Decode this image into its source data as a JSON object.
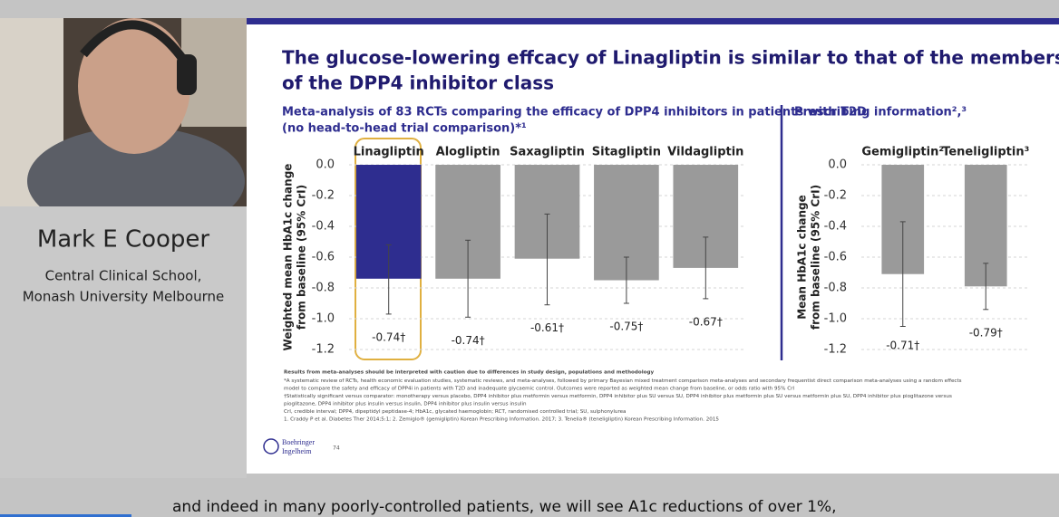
{
  "speaker": {
    "name": "Mark E Cooper",
    "affiliation": [
      "Central Clinical School,",
      "Monash University Melbourne"
    ]
  },
  "slide": {
    "title": [
      "The glucose-lowering effcacy of Linagliptin is similar to that of the members",
      "of the DPP4 inhibitor class"
    ],
    "subtitle_left": [
      "Meta-analysis of 83 RCTs comparing the efficacy of DPP4 inhibitors in patients with T2D",
      "(no head-to-head trial comparison)*¹"
    ],
    "subtitle_right": "Prescribing information²,³",
    "footnotes": [
      "Results from meta-analyses should be interpreted with caution due to differences in study design, populations and methodology",
      "*A systematic review of RCTs, health economic evaluation studies, systematic reviews, and meta-analyses, followed by primary Bayesian mixed treatment comparison meta-analyses and secondary frequentist direct comparison meta-analyses using a random effects",
      "model to compare the safety and efficacy of DPP4i in patients with T2D and inadequate glycaemic control. Outcomes were reported as weighted mean change from baseline, or odds ratio with 95% CrI",
      "†Statistically significant versus comparator: monotherapy versus placebo, DPP4 inhibitor plus metformin versus metformin, DPP4 inhibitor plus SU versus SU, DPP4 inhibitor plus metformin plus SU versus metformin plus SU, DPP4 inhibitor plus pioglitazone versus",
      "pioglitazone, DPP4 inhibitor plus insulin versus insulin, DPP4 inhibitor plus insulin versus insulin",
      "CrI, credible interval; DPP4, dipeptidyl peptidase-4; HbA1c, glycated haemoglobin; RCT, randomised controlled trial; SU, sulphonylurea",
      "1. Craddy P et al. Diabetes Ther 2014;5:1; 2. Zemiglo® (gemigliptin) Korean Prescribing Information. 2017; 3. Tenelia® (teneligliptin) Korean Prescribing Information. 2015"
    ],
    "logo": [
      "Boehringer",
      "Ingelheim"
    ],
    "page_number": "74"
  },
  "chart_data": [
    {
      "type": "bar",
      "ylabel": [
        "Weighted mean HbA1c change",
        "from baseline (95% CrI)"
      ],
      "categories": [
        "Linagliptin",
        "Alogliptin",
        "Saxagliptin",
        "Sitagliptin",
        "Vildagliptin"
      ],
      "values": [
        -0.74,
        -0.74,
        -0.61,
        -0.75,
        -0.67
      ],
      "value_labels": [
        "-0.74†",
        "-0.74†",
        "-0.61†",
        "-0.75†",
        "-0.67†"
      ],
      "error_low": [
        -0.97,
        -0.99,
        -0.91,
        -0.9,
        -0.87
      ],
      "error_high": [
        -0.52,
        -0.49,
        -0.32,
        -0.6,
        -0.47
      ],
      "colors": [
        "#2e2d8f",
        "#9a9a9a",
        "#9a9a9a",
        "#9a9a9a",
        "#9a9a9a"
      ],
      "ylim": [
        -1.2,
        0
      ],
      "yticks": [
        {
          "value": 0,
          "label": "0.0"
        },
        -0.2,
        -0.4,
        -0.6,
        -0.8,
        {
          "value": -1,
          "label": "-1.0"
        },
        -1.2
      ],
      "grid": true
    },
    {
      "type": "bar",
      "ylabel": [
        "Mean HbA1c change",
        "from baseline (95% CrI)"
      ],
      "categories": [
        "Gemigliptin²",
        "Teneligliptin³"
      ],
      "values": [
        -0.71,
        -0.79
      ],
      "value_labels": [
        "-0.71†",
        "-0.79†"
      ],
      "error_low": [
        -1.05,
        -0.94
      ],
      "error_high": [
        -0.37,
        -0.64
      ],
      "colors": [
        "#9a9a9a",
        "#9a9a9a"
      ],
      "ylim": [
        -1.2,
        0
      ],
      "yticks": [
        {
          "value": 0,
          "label": "0.0"
        },
        -0.2,
        -0.4,
        -0.6,
        -0.8,
        {
          "value": -1,
          "label": "-1.0"
        },
        -1.2
      ],
      "grid": true
    }
  ],
  "caption": "and indeed in many poorly-controlled patients, we will see A1c reductions of over 1%,"
}
